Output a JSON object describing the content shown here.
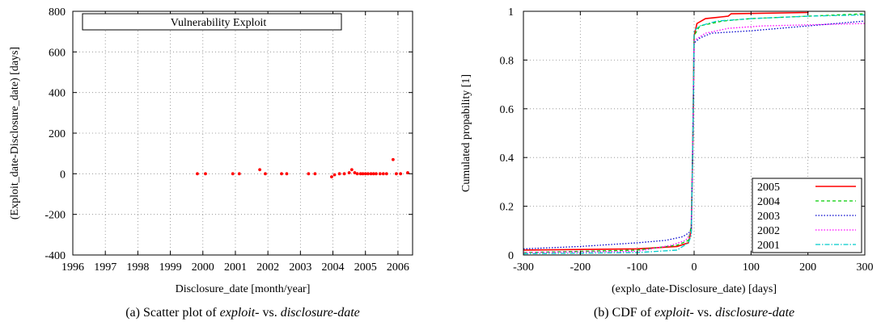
{
  "chart_data": [
    {
      "type": "scatter",
      "ylabel": "(Exploit_date-Disclosure_date) [days]",
      "xlabel": "Disclosure_date [month/year]",
      "legend_title": "Vulnerability Exploit",
      "legend_placement": "top-center",
      "caption_prefix": "(a)  Scatter plot of ",
      "caption_em1": "exploit-",
      "caption_mid": " vs. ",
      "caption_em2": "disclosure-date",
      "grid": true,
      "xlim": [
        1996,
        2006.45
      ],
      "ylim": [
        -400,
        800
      ],
      "xticks": [
        "1996",
        "1997",
        "1998",
        "1999",
        "2000",
        "2001",
        "2002",
        "2003",
        "2004",
        "2005",
        "2006"
      ],
      "yticks": [
        "800",
        "600",
        "400",
        "200",
        "0",
        "-200",
        "-400"
      ],
      "marker_color": "#ff0000",
      "points": [
        [
          1999.83,
          0
        ],
        [
          2000.08,
          0
        ],
        [
          2000.92,
          0
        ],
        [
          2001.12,
          0
        ],
        [
          2001.75,
          20
        ],
        [
          2001.92,
          0
        ],
        [
          2002.42,
          0
        ],
        [
          2002.58,
          0
        ],
        [
          2003.25,
          0
        ],
        [
          2003.45,
          0
        ],
        [
          2003.96,
          -15
        ],
        [
          2004.05,
          -5
        ],
        [
          2004.2,
          0
        ],
        [
          2004.35,
          0
        ],
        [
          2004.5,
          5
        ],
        [
          2004.58,
          20
        ],
        [
          2004.67,
          5
        ],
        [
          2004.75,
          0
        ],
        [
          2004.85,
          0
        ],
        [
          2004.92,
          0
        ],
        [
          2005.0,
          0
        ],
        [
          2005.08,
          0
        ],
        [
          2005.17,
          0
        ],
        [
          2005.25,
          0
        ],
        [
          2005.33,
          0
        ],
        [
          2005.45,
          0
        ],
        [
          2005.55,
          0
        ],
        [
          2005.65,
          0
        ],
        [
          2005.85,
          70
        ],
        [
          2005.95,
          0
        ],
        [
          2006.08,
          0
        ],
        [
          2006.3,
          5
        ]
      ]
    },
    {
      "type": "line",
      "ylabel": "Cumulated propability [1]",
      "xlabel": "(explo_date-Disclosure_date) [days]",
      "caption_prefix": "(b)  CDF of ",
      "caption_em1": "exploit-",
      "caption_mid": " vs. ",
      "caption_em2": "disclosure-date",
      "grid": true,
      "legend_placement": "bottom-right",
      "xlim": [
        -300,
        300
      ],
      "ylim": [
        0,
        1
      ],
      "xticks": [
        "-300",
        "-200",
        "-100",
        "0",
        "100",
        "200",
        "300"
      ],
      "yticks": [
        "1",
        "0.8",
        "0.6",
        "0.4",
        "0.2",
        "0"
      ],
      "series": [
        {
          "name": "2005",
          "color": "#ff0000",
          "style": "solid",
          "points": [
            [
              -300,
              0.02
            ],
            [
              -100,
              0.025
            ],
            [
              -30,
              0.035
            ],
            [
              -10,
              0.05
            ],
            [
              -5,
              0.1
            ],
            [
              -2,
              0.5
            ],
            [
              0,
              0.9
            ],
            [
              5,
              0.95
            ],
            [
              20,
              0.97
            ],
            [
              60,
              0.98
            ],
            [
              65,
              0.99
            ],
            [
              200,
              0.995
            ],
            [
              200,
              1.0
            ]
          ]
        },
        {
          "name": "2004",
          "color": "#00cc00",
          "style": "dashed",
          "points": [
            [
              -300,
              0.01
            ],
            [
              -100,
              0.02
            ],
            [
              -30,
              0.04
            ],
            [
              -10,
              0.06
            ],
            [
              -5,
              0.12
            ],
            [
              -2,
              0.5
            ],
            [
              0,
              0.9
            ],
            [
              10,
              0.94
            ],
            [
              50,
              0.96
            ],
            [
              100,
              0.97
            ],
            [
              200,
              0.98
            ],
            [
              300,
              0.99
            ]
          ]
        },
        {
          "name": "2003",
          "color": "#0000cc",
          "style": "dotted",
          "points": [
            [
              -300,
              0.025
            ],
            [
              -200,
              0.035
            ],
            [
              -100,
              0.05
            ],
            [
              -50,
              0.06
            ],
            [
              -20,
              0.075
            ],
            [
              -10,
              0.09
            ],
            [
              -5,
              0.1
            ],
            [
              -2,
              0.5
            ],
            [
              0,
              0.87
            ],
            [
              10,
              0.89
            ],
            [
              30,
              0.91
            ],
            [
              100,
              0.92
            ],
            [
              200,
              0.94
            ],
            [
              300,
              0.96
            ]
          ]
        },
        {
          "name": "2002",
          "color": "#ff00ff",
          "style": "dotted",
          "points": [
            [
              -300,
              0.01
            ],
            [
              -100,
              0.015
            ],
            [
              -40,
              0.04
            ],
            [
              -15,
              0.06
            ],
            [
              -5,
              0.09
            ],
            [
              -2,
              0.5
            ],
            [
              0,
              0.88
            ],
            [
              20,
              0.91
            ],
            [
              60,
              0.93
            ],
            [
              120,
              0.94
            ],
            [
              300,
              0.95
            ]
          ]
        },
        {
          "name": "2001",
          "color": "#00cccc",
          "style": "dashdot",
          "points": [
            [
              -300,
              0.005
            ],
            [
              -100,
              0.01
            ],
            [
              -30,
              0.02
            ],
            [
              -10,
              0.05
            ],
            [
              -5,
              0.08
            ],
            [
              -2,
              0.5
            ],
            [
              0,
              0.92
            ],
            [
              10,
              0.94
            ],
            [
              40,
              0.96
            ],
            [
              100,
              0.97
            ],
            [
              200,
              0.98
            ],
            [
              300,
              0.985
            ]
          ]
        }
      ]
    }
  ]
}
